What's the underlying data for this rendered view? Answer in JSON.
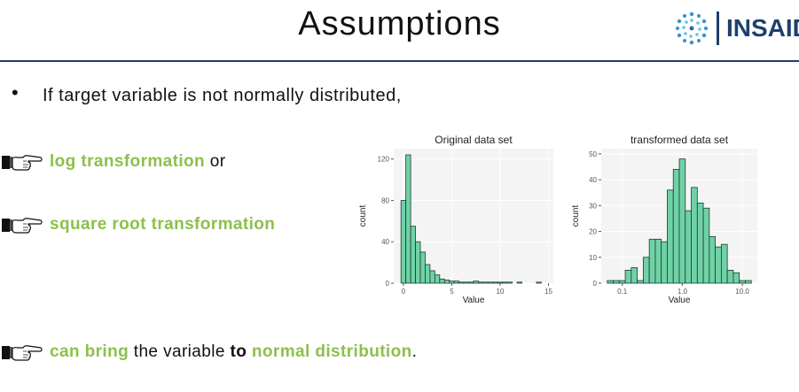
{
  "slide": {
    "title": "Assumptions",
    "logo_text": "INSAID",
    "bullet": "If target variable is not normally distributed,",
    "item1": {
      "green": "log transformation",
      "rest": " or"
    },
    "item2": {
      "green": "square root transformation"
    },
    "item3": {
      "g1": "can bring",
      "t1": " the variable ",
      "b1": "to",
      "t2": " ",
      "g2": "normal distribution",
      "t3": "."
    }
  },
  "colors": {
    "accent_green": "#8cc04b",
    "navy": "#1e3f6e",
    "bar_fill": "#6fd2a7",
    "bar_stroke": "#1d3a2c"
  },
  "chart_data": [
    {
      "type": "bar",
      "title": "Original data set",
      "xlabel": "Value",
      "ylabel": "count",
      "xticks": [
        "0",
        "5",
        "10",
        "15"
      ],
      "yticks": [
        "0",
        "40",
        "80",
        "120"
      ],
      "xlim": [
        -1,
        15.5
      ],
      "ylim": [
        0,
        130
      ],
      "bin_width": 0.5,
      "bins_start": -0.25,
      "values": [
        80,
        124,
        55,
        40,
        30,
        18,
        12,
        8,
        4,
        3,
        2,
        2,
        1,
        1,
        1,
        2,
        1,
        1,
        1,
        1,
        1,
        1,
        1,
        0,
        1,
        0,
        0,
        0,
        1,
        0
      ]
    },
    {
      "type": "bar",
      "title": "transformed data set",
      "xlabel": "Value",
      "ylabel": "count",
      "xscale": "log",
      "xticks": [
        "0.1",
        "1.0",
        "10.0"
      ],
      "yticks": [
        "0",
        "10",
        "20",
        "30",
        "40",
        "50"
      ],
      "ylim": [
        0,
        52
      ],
      "log_range": [
        -1.35,
        1.25
      ],
      "values": [
        1,
        1,
        1,
        5,
        6,
        1,
        10,
        17,
        17,
        16,
        36,
        44,
        48,
        28,
        37,
        31,
        29,
        18,
        14,
        15,
        5,
        4,
        1,
        1
      ]
    }
  ]
}
